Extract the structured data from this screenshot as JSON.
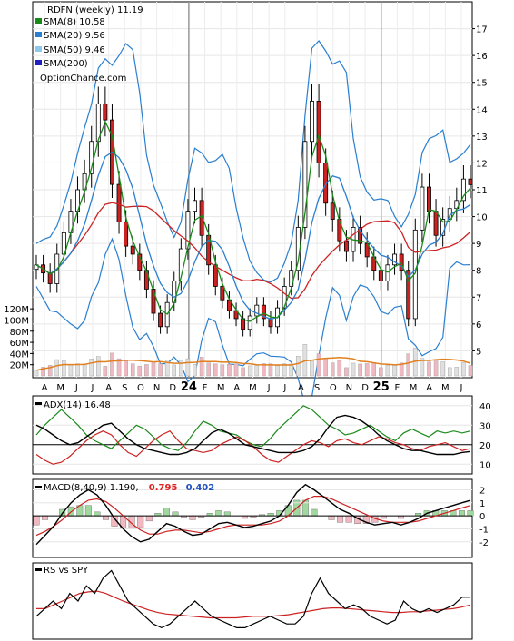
{
  "chart_data": {
    "type": "line",
    "title": "RDFN (weekly) 11.19",
    "watermark": "OptionChance.com",
    "x_tick_labels": [
      "A",
      "M",
      "J",
      "J",
      "A",
      "S",
      "O",
      "N",
      "D",
      "24",
      "F",
      "M",
      "A",
      "M",
      "J",
      "J",
      "A",
      "S",
      "O",
      "N",
      "D",
      "25",
      "F",
      "M",
      "A",
      "M",
      "J"
    ],
    "price_panel": {
      "ylim": [
        4,
        18
      ],
      "y_ticks": [
        5,
        6,
        7,
        8,
        9,
        10,
        11,
        12,
        13,
        14,
        15,
        16,
        17
      ],
      "legend": [
        {
          "label": "SMA(8) 10.58",
          "color": "#1a8a1a"
        },
        {
          "label": "SMA(20) 9.56",
          "color": "#2a7fd0"
        },
        {
          "label": "SMA(50) 9.46",
          "color": "#8ec8ec"
        },
        {
          "label": "SMA(200)",
          "color": "#2020c0"
        }
      ],
      "close": [
        8.2,
        7.9,
        7.5,
        8.6,
        9.4,
        10.2,
        11.0,
        11.6,
        12.8,
        14.2,
        13.6,
        11.2,
        9.8,
        8.9,
        8.6,
        8.0,
        7.3,
        6.4,
        5.9,
        6.8,
        7.6,
        8.8,
        10.2,
        10.6,
        9.3,
        8.2,
        7.4,
        6.9,
        6.5,
        6.2,
        5.8,
        6.3,
        6.7,
        6.2,
        5.9,
        6.6,
        7.4,
        8.0,
        9.6,
        12.8,
        14.3,
        12.0,
        10.5,
        9.9,
        9.1,
        8.7,
        9.6,
        9.0,
        8.5,
        8.0,
        7.6,
        8.2,
        8.6,
        8.0,
        6.2,
        9.5,
        11.1,
        10.2,
        9.3,
        9.9,
        10.3,
        10.6,
        11.4,
        11.19
      ],
      "sma8_legend": 10.58,
      "sma20_legend": 9.56,
      "sma50_legend": 9.46
    },
    "volume_panel": {
      "y_ticks": [
        "120M",
        "100M",
        "80M",
        "60M",
        "40M",
        "20M"
      ],
      "ylim": [
        0,
        130
      ]
    },
    "adx_panel": {
      "label": "ADX(14) 16.48",
      "y_ticks": [
        10,
        20,
        30,
        40
      ],
      "ylim": [
        5,
        45
      ],
      "adx": [
        30,
        28,
        25,
        22,
        20,
        21,
        24,
        27,
        30,
        31,
        27,
        23,
        20,
        18,
        17,
        16,
        15,
        15,
        16,
        18,
        22,
        26,
        28,
        26,
        23,
        20,
        19,
        18,
        17,
        16,
        16,
        16,
        17,
        19,
        23,
        29,
        34,
        35,
        34,
        32,
        29,
        25,
        22,
        20,
        18,
        17,
        17,
        16,
        15,
        15,
        15,
        16,
        16.48
      ],
      "plus_di": [
        25,
        30,
        34,
        38,
        34,
        30,
        25,
        22,
        20,
        18,
        22,
        26,
        30,
        28,
        24,
        20,
        18,
        17,
        21,
        27,
        32,
        30,
        27,
        26,
        25,
        22,
        20,
        19,
        23,
        28,
        32,
        36,
        40,
        38,
        34,
        30,
        28,
        25,
        26,
        28,
        30,
        27,
        24,
        22,
        26,
        28,
        26,
        24,
        27,
        26,
        27,
        26,
        27
      ],
      "minus_di": [
        15,
        12,
        10,
        11,
        14,
        18,
        22,
        25,
        27,
        25,
        20,
        16,
        14,
        18,
        22,
        25,
        27,
        22,
        18,
        17,
        16,
        17,
        20,
        22,
        24,
        22,
        19,
        15,
        12,
        11,
        14,
        17,
        20,
        22,
        21,
        19,
        22,
        23,
        21,
        20,
        22,
        24,
        23,
        21,
        20,
        18,
        17,
        19,
        20,
        21,
        19,
        17,
        18
      ]
    },
    "macd_panel": {
      "label": "MACD(8,40,9) 1.190,",
      "signal_label": "0.795",
      "hist_label": "0.402",
      "y_ticks": [
        -2,
        -1,
        0,
        1,
        2
      ],
      "ylim": [
        -3.2,
        2.8
      ],
      "macd": [
        -2.2,
        -1.5,
        -0.8,
        0.2,
        1.0,
        1.6,
        2.0,
        1.6,
        0.8,
        -0.2,
        -1.0,
        -1.6,
        -2.0,
        -1.8,
        -1.2,
        -0.6,
        -0.8,
        -1.2,
        -1.5,
        -1.4,
        -1.0,
        -0.6,
        -0.5,
        -0.7,
        -0.9,
        -0.8,
        -0.6,
        -0.4,
        0.0,
        0.8,
        1.8,
        2.4,
        2.0,
        1.5,
        1.0,
        0.5,
        0.2,
        -0.2,
        -0.5,
        -0.7,
        -0.6,
        -0.5,
        -0.7,
        -0.5,
        -0.2,
        0.2,
        0.4,
        0.6,
        0.8,
        1.0,
        1.19
      ],
      "signal": [
        -1.5,
        -1.2,
        -0.8,
        -0.3,
        0.3,
        0.8,
        1.2,
        1.3,
        1.1,
        0.6,
        0.0,
        -0.6,
        -1.1,
        -1.4,
        -1.4,
        -1.2,
        -1.1,
        -1.1,
        -1.2,
        -1.3,
        -1.2,
        -1.0,
        -0.8,
        -0.7,
        -0.7,
        -0.7,
        -0.7,
        -0.6,
        -0.4,
        0.0,
        0.6,
        1.2,
        1.5,
        1.5,
        1.3,
        1.0,
        0.7,
        0.4,
        0.1,
        -0.2,
        -0.4,
        -0.5,
        -0.5,
        -0.5,
        -0.4,
        -0.2,
        0.0,
        0.2,
        0.4,
        0.6,
        0.795
      ]
    },
    "rs_panel": {
      "label": "RS vs SPY",
      "ylim": [
        0,
        10
      ],
      "rs": [
        3,
        4,
        5,
        4,
        6,
        5,
        7,
        6,
        8,
        9,
        7,
        5,
        4,
        3,
        2,
        1.5,
        2,
        3,
        4,
        5,
        4,
        3,
        2.5,
        2,
        1.5,
        1.5,
        2,
        2.5,
        3,
        2.5,
        2,
        2,
        3,
        6,
        8,
        6,
        5,
        4,
        4.5,
        4,
        3,
        2.5,
        2,
        2.5,
        5,
        4,
        3.5,
        4,
        3.5,
        4,
        4.5,
        5.5,
        5.5
      ],
      "rs_ma": [
        4,
        4,
        4.5,
        5,
        5.5,
        6,
        6.2,
        6.3,
        6,
        5.5,
        5,
        4.6,
        4.2,
        3.8,
        3.5,
        3.3,
        3.2,
        3.1,
        3.0,
        2.9,
        2.8,
        2.8,
        2.8,
        2.8,
        2.9,
        3.0,
        3.0,
        3.0,
        3.1,
        3.2,
        3.4,
        3.6,
        3.8,
        4.0,
        4.1,
        4.1,
        4.0,
        3.9,
        3.8,
        3.7,
        3.6,
        3.5,
        3.5,
        3.6,
        3.6,
        3.7,
        3.8,
        3.9,
        4.0,
        4.2,
        4.5
      ]
    }
  },
  "colors": {
    "up_candle": "#f0f040",
    "down_candle": "#cc2222",
    "sma8": "#1a8a1a",
    "sma20": "#2a7fd0",
    "sma50": "#cc2222",
    "sma200": "#2020c0",
    "bollinger": "#2a7fd0",
    "volume_down": "#f0b8c0",
    "volume_up": "#e0e0e0",
    "volume_ma": "#e08020",
    "adx": "#000000",
    "plus_di": "#1a8a1a",
    "minus_di": "#cc2222",
    "macd": "#000000",
    "signal": "#cc2222",
    "hist_pos": "#a0d8a0",
    "hist_neg": "#f0b8c0",
    "signal_label": "#e02020",
    "hist_label": "#2050c0"
  }
}
